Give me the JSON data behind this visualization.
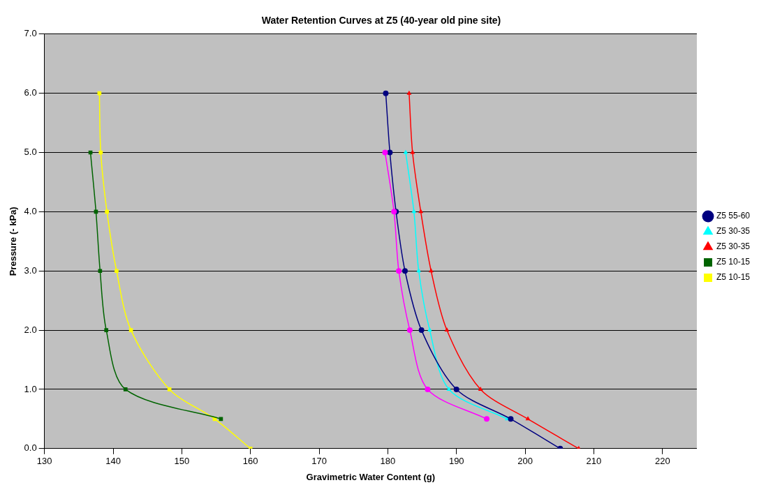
{
  "chart_data": {
    "type": "line",
    "title": "Water Retention Curves at Z5 (40-year old pine site)",
    "xlabel": "Gravimetric Water Content (g)",
    "ylabel": "Pressure (- kPa)",
    "xlim": [
      130,
      225
    ],
    "xticks": [
      130,
      140,
      150,
      160,
      170,
      180,
      190,
      200,
      210,
      220
    ],
    "ylim": [
      0,
      7
    ],
    "yticks": [
      {
        "value": 0,
        "label": "0.0"
      },
      {
        "value": 1,
        "label": "1.0"
      },
      {
        "value": 2,
        "label": "2.0"
      },
      {
        "value": 3,
        "label": "3.0"
      },
      {
        "value": 4,
        "label": "4.0"
      },
      {
        "value": 5,
        "label": "5.0"
      },
      {
        "value": 6,
        "label": "6.0"
      },
      {
        "value": 7,
        "label": "7.0"
      }
    ],
    "grid": "y",
    "legend": "right",
    "line_style": "solid",
    "series": [
      {
        "name": "Z5 10-15",
        "color": "#ffff00",
        "marker": "square",
        "x": [
          138.0,
          138.2,
          139.1,
          140.5,
          142.6,
          148.2,
          154.8,
          160.0
        ],
        "values": [
          6,
          5,
          4,
          3,
          2,
          1,
          0.5,
          0
        ]
      },
      {
        "name": "Z5 10-15",
        "color": "#006400",
        "marker": "square",
        "x": [
          136.7,
          137.5,
          138.1,
          139.0,
          141.8,
          155.7
        ],
        "values": [
          5,
          4,
          3,
          2,
          1,
          0.5
        ]
      },
      {
        "name": "Z5 30-35",
        "color": "#ff0000",
        "marker": "triangle",
        "x": [
          183.1,
          183.6,
          184.8,
          186.3,
          188.6,
          193.5,
          200.4,
          207.8
        ],
        "values": [
          6,
          5,
          4,
          3,
          2,
          1,
          0.5,
          0
        ]
      },
      {
        "name": "Z5 30-35",
        "color": "#00ffff",
        "marker": "triangle",
        "x": [
          182.6,
          183.8,
          184.5,
          186.1,
          188.9,
          197.4
        ],
        "values": [
          5,
          4,
          3,
          2,
          1,
          0.5
        ]
      },
      {
        "name": "Z5 55-60",
        "color": "#000080",
        "marker": "circle",
        "x": [
          179.7,
          180.3,
          181.2,
          182.5,
          184.9,
          190.0,
          197.9,
          205.1
        ],
        "values": [
          6,
          5,
          4,
          3,
          2,
          1,
          0.5,
          0
        ]
      },
      {
        "color": "#ff00ff",
        "marker": "circle",
        "x": [
          179.6,
          180.9,
          181.6,
          183.2,
          185.8,
          194.4
        ],
        "values": [
          5,
          4,
          3,
          2,
          1,
          0.5
        ]
      }
    ]
  }
}
